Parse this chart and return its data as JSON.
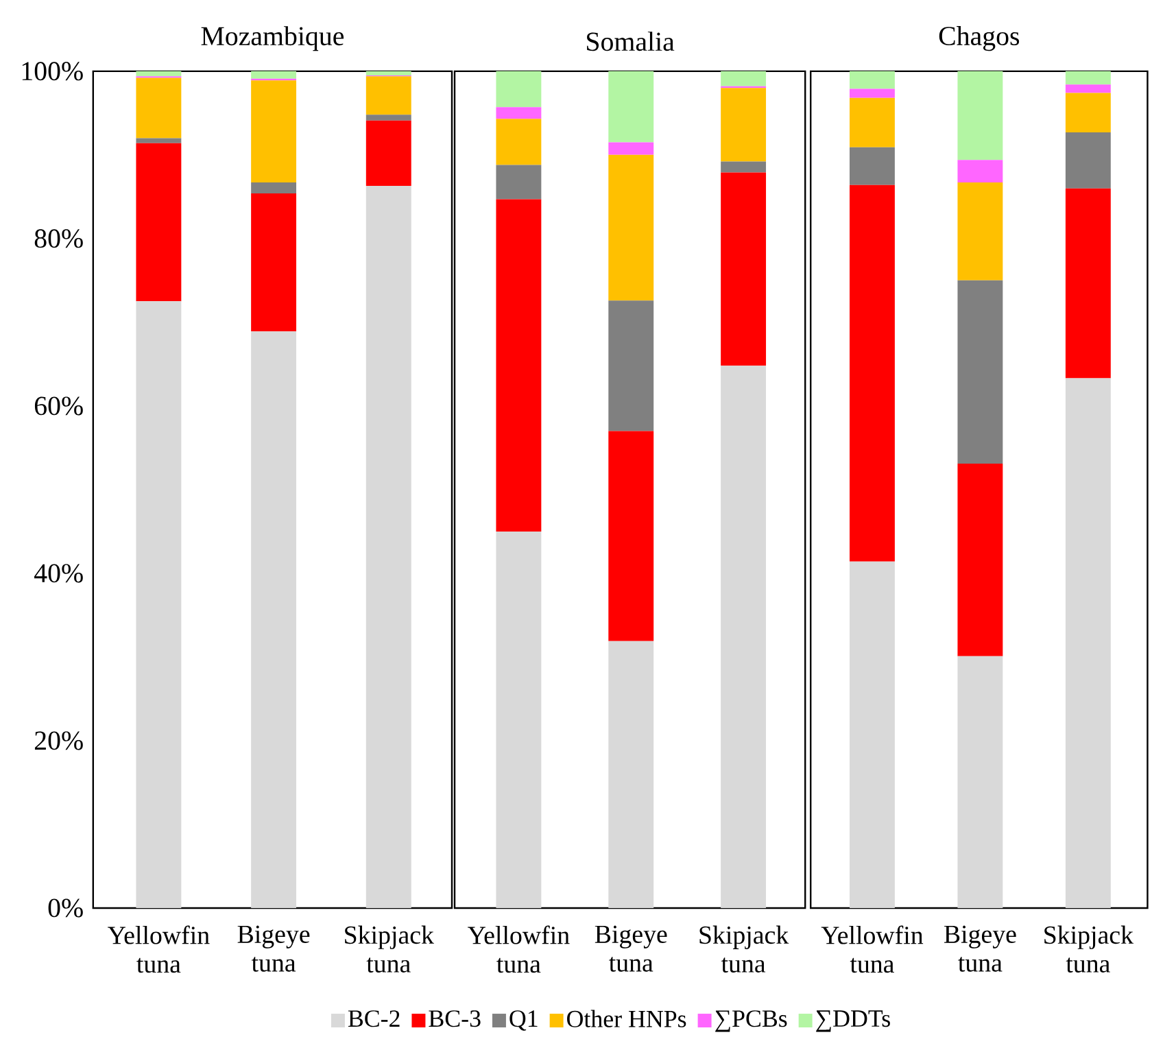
{
  "chart_data": [
    {
      "type": "bar",
      "stacked": true,
      "title": "Mozambique",
      "categories": [
        "Yellowfin tuna",
        "Bigeye tuna",
        "Skipjack tuna"
      ],
      "ylim": [
        0,
        100
      ],
      "yticks": [
        {
          "value": 0,
          "label": "0%"
        },
        {
          "value": 20,
          "label": "20%"
        },
        {
          "value": 40,
          "label": "40%"
        },
        {
          "value": 60,
          "label": "60%"
        },
        {
          "value": 80,
          "label": "80%"
        },
        {
          "value": 100,
          "label": "100%"
        }
      ],
      "series": [
        {
          "color": "#d9d9d9",
          "values": [
            72.5,
            68.9,
            86.3
          ]
        },
        {
          "color": "#ff0000",
          "values": [
            18.9,
            16.5,
            7.8
          ]
        },
        {
          "color": "#808080",
          "values": [
            0.6,
            1.3,
            0.7
          ]
        },
        {
          "color": "#ffc000",
          "values": [
            7.2,
            12.2,
            4.6
          ]
        },
        {
          "color": "#ff66ff",
          "values": [
            0.2,
            0.2,
            0.1
          ]
        },
        {
          "color": "#b3f5a3",
          "values": [
            0.6,
            0.9,
            0.5
          ]
        }
      ]
    },
    {
      "type": "bar",
      "stacked": true,
      "title": "Somalia",
      "categories": [
        "Yellowfin tuna",
        "Bigeye tuna",
        "Skipjack tuna"
      ],
      "ylim": [
        0,
        100
      ],
      "tick_labels": "x",
      "legend": "bottom",
      "series": [
        {
          "name": "BC-2",
          "color": "#d9d9d9",
          "values": [
            45.0,
            31.9,
            64.8
          ]
        },
        {
          "name": "BC-3",
          "color": "#ff0000",
          "values": [
            39.7,
            25.1,
            23.1
          ]
        },
        {
          "name": "Q1",
          "color": "#808080",
          "values": [
            4.1,
            15.6,
            1.3
          ]
        },
        {
          "name": "Other HNPs",
          "color": "#ffc000",
          "values": [
            5.5,
            17.4,
            8.8
          ]
        },
        {
          "name": "∑PCBs",
          "color": "#ff66ff",
          "values": [
            1.4,
            1.5,
            0.2
          ]
        },
        {
          "name": "∑DDTs",
          "color": "#b3f5a3",
          "values": [
            4.3,
            8.5,
            1.8
          ]
        }
      ]
    },
    {
      "type": "bar",
      "stacked": true,
      "title": "Chagos",
      "categories": [
        "Yellowfin tuna",
        "Bigeye tuna",
        "Skipjack tuna"
      ],
      "ylim": [
        0,
        100
      ],
      "tick_labels": "x",
      "series": [
        {
          "color": "#d9d9d9",
          "values": [
            41.4,
            30.1,
            63.3
          ]
        },
        {
          "color": "#ff0000",
          "values": [
            45.0,
            23.0,
            22.7
          ]
        },
        {
          "color": "#808080",
          "values": [
            4.5,
            21.9,
            6.7
          ]
        },
        {
          "color": "#ffc000",
          "values": [
            5.9,
            11.7,
            4.7
          ]
        },
        {
          "color": "#ff66ff",
          "values": [
            1.1,
            2.7,
            1.0
          ]
        },
        {
          "color": "#b3f5a3",
          "values": [
            2.1,
            10.6,
            1.6
          ]
        }
      ]
    }
  ]
}
